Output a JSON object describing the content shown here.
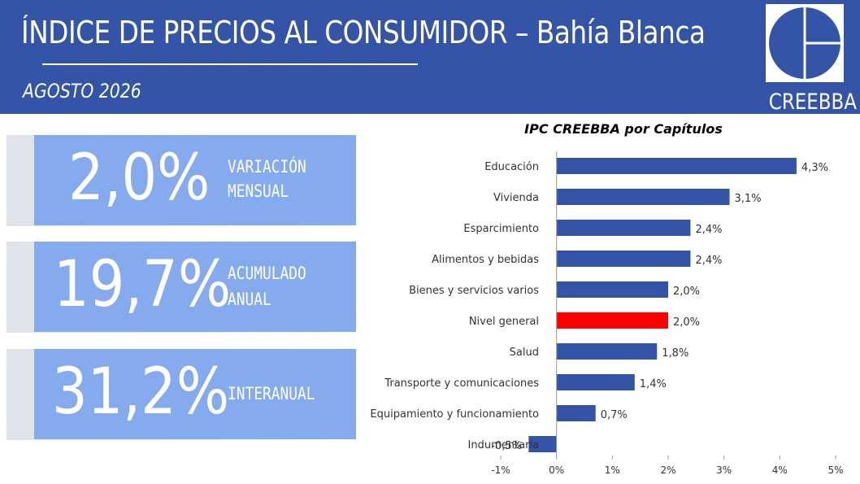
{
  "header": {
    "title": "ÍNDICE DE PRECIOS AL CONSUMIDOR – Bahía Blanca",
    "subtitle": "AGOSTO 2026",
    "logo_text": "CREEBBA"
  },
  "stats": [
    {
      "value": "2,0%",
      "label_line1": "VARIACIÓN",
      "label_line2": "MENSUAL"
    },
    {
      "value": "19,7%",
      "label_line1": "ACUMULADO",
      "label_line2": "ANUAL"
    },
    {
      "value": "31,2%",
      "label_line1": "INTERANUAL",
      "label_line2": ""
    }
  ],
  "colors": {
    "header_bg": "#3454a8",
    "card_bg": "#86aaee",
    "bar": "#3454a8",
    "highlight_bar": "#ff0000"
  },
  "chart_data": {
    "type": "bar",
    "orientation": "horizontal",
    "title": "IPC CREEBBA por Capítulos",
    "categories": [
      "Educación",
      "Vivienda",
      "Esparcimiento",
      "Alimentos y bebidas",
      "Bienes y servicios varios",
      "Nivel general",
      "Salud",
      "Transporte y comunicaciones",
      "Equipamiento y funcionamiento",
      "Indumentaria"
    ],
    "values": [
      4.3,
      3.1,
      2.4,
      2.4,
      2.0,
      2.0,
      1.8,
      1.4,
      0.7,
      -0.5
    ],
    "value_labels": [
      "4,3%",
      "3,1%",
      "2,4%",
      "2,4%",
      "2,0%",
      "2,0%",
      "1,8%",
      "1,4%",
      "0,7%",
      "-0,5%"
    ],
    "highlight_category": "Nivel general",
    "xlim": [
      -1,
      5
    ],
    "xticks": [
      -1,
      0,
      1,
      2,
      3,
      4,
      5
    ],
    "xtick_labels": [
      "-1%",
      "0%",
      "1%",
      "2%",
      "3%",
      "4%",
      "5%"
    ],
    "grid": false,
    "legend": "none"
  }
}
